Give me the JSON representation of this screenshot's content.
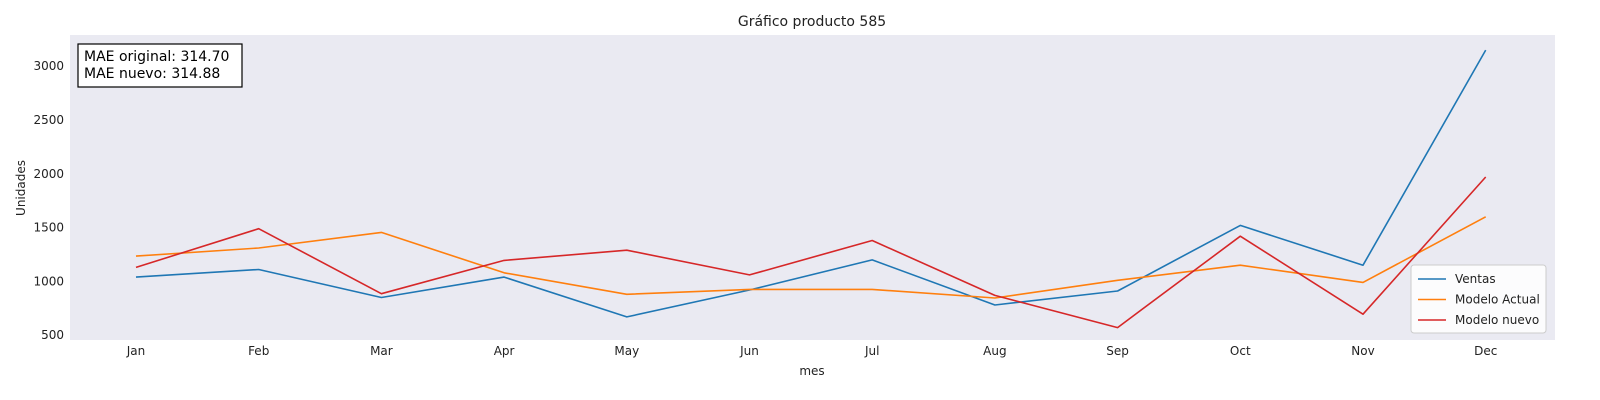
{
  "chart_data": {
    "type": "line",
    "title": "Gráfico producto 585",
    "xlabel": "mes",
    "ylabel": "Unidades",
    "categories": [
      "Jan",
      "Feb",
      "Mar",
      "Apr",
      "May",
      "Jun",
      "Jul",
      "Aug",
      "Sep",
      "Oct",
      "Nov",
      "Dec"
    ],
    "yticks": [
      500,
      1000,
      1500,
      2000,
      2500,
      3000
    ],
    "ylim": [
      455,
      3290
    ],
    "grid": false,
    "legend_position": "bottom-right",
    "series": [
      {
        "name": "Ventas",
        "color": "#1f77b4",
        "values": [
          1040,
          1110,
          850,
          1040,
          670,
          920,
          1200,
          780,
          910,
          1520,
          1150,
          3150
        ]
      },
      {
        "name": "Modelo Actual",
        "color": "#ff7f0e",
        "values": [
          1235,
          1310,
          1455,
          1080,
          880,
          925,
          925,
          845,
          1010,
          1150,
          990,
          1600
        ]
      },
      {
        "name": "Modelo nuevo",
        "color": "#d62728",
        "values": [
          1130,
          1490,
          885,
          1195,
          1290,
          1060,
          1380,
          870,
          570,
          1420,
          695,
          1970
        ]
      }
    ],
    "annotations": [
      "MAE original: 314.70",
      "MAE nuevo: 314.88"
    ]
  },
  "colors": {
    "plot_background": "#eaeaf2"
  }
}
